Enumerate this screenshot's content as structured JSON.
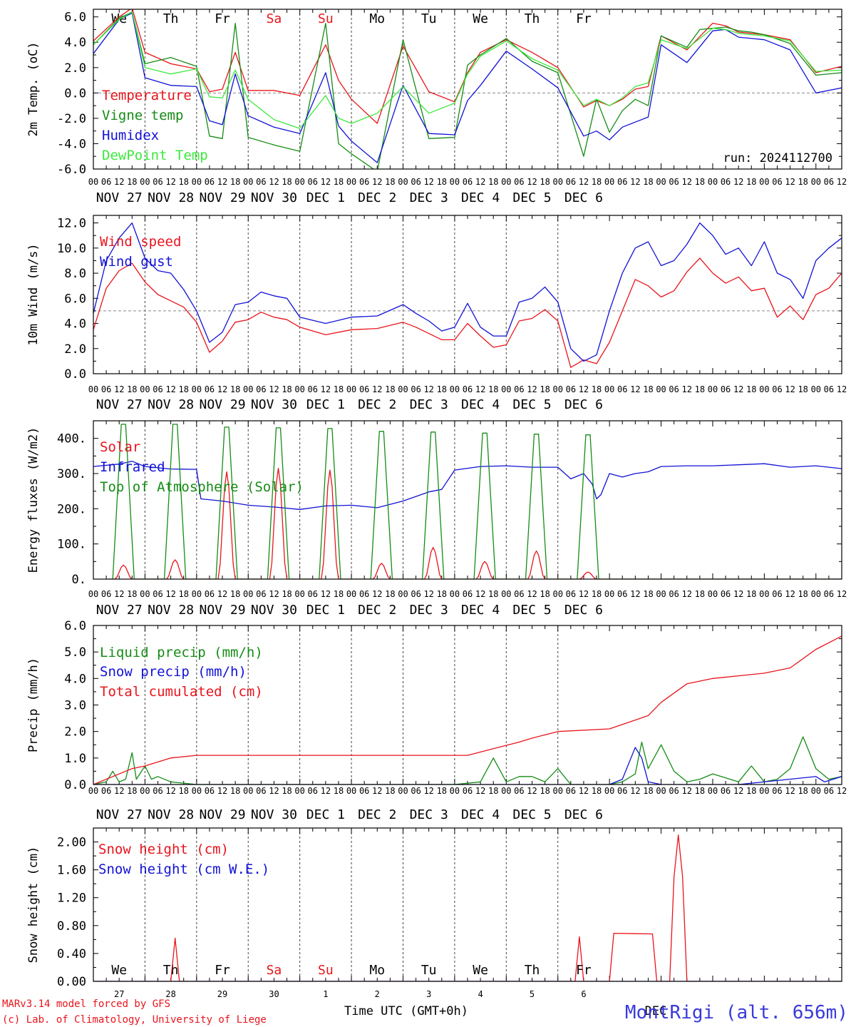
{
  "run_label": "run: 2024112700",
  "footer": {
    "model": "MARv3.14 model forced by GFS",
    "credit": "(c) Lab. of Climatology, University of Liege",
    "xlabel": "Time UTC (GMT+0h)",
    "station": "MontRigi (alt. 656m)"
  },
  "days": {
    "weekday": [
      "We",
      "Th",
      "Fr",
      "Sa",
      "Su",
      "Mo",
      "Tu",
      "We",
      "Th",
      "Fr"
    ],
    "weekend_flags": [
      false,
      false,
      false,
      true,
      true,
      false,
      false,
      false,
      false,
      false
    ],
    "date_labels": [
      "NOV 27",
      "NOV 28",
      "NOV 29",
      "NOV 30",
      "DEC  1",
      "DEC  2",
      "DEC  3",
      "DEC  4",
      "DEC  5",
      "DEC  6"
    ],
    "day_numbers": [
      "27",
      "28",
      "29",
      "30",
      "1",
      "2",
      "3",
      "4",
      "5",
      "6"
    ],
    "hour_ticks": [
      "00",
      "06",
      "12",
      "18"
    ],
    "bottom_month_label": "DEC"
  },
  "colors": {
    "red": "#e8141c",
    "green": "#158c15",
    "blue": "#1212d6",
    "lightgreen": "#3ce83c",
    "grey": "#888888",
    "station": "#3a3adc"
  },
  "chart_data": [
    {
      "type": "line",
      "ylabel": "2m Temp. (oC)",
      "ylim": [
        -6,
        6.6
      ],
      "yticks": [
        "6.0",
        "4.0",
        "2.0",
        "0.0",
        "-2.0",
        "-4.0",
        "-6.0"
      ],
      "ytick_values": [
        6,
        4,
        2,
        0,
        -2,
        -4,
        -6
      ],
      "hline": 0,
      "series": [
        {
          "name": "Temperature",
          "color": "red",
          "x": [
            0,
            12,
            18,
            24,
            36,
            48,
            54,
            60,
            66,
            72,
            84,
            96,
            108,
            114,
            120,
            132,
            144,
            156,
            168,
            174,
            180,
            192,
            204,
            216,
            228,
            234,
            240,
            246,
            252,
            258,
            264,
            276,
            288,
            294,
            300,
            306,
            312,
            324,
            336,
            348
          ],
          "y": [
            4.1,
            6.0,
            6.7,
            3.2,
            2.3,
            1.9,
            0.1,
            0.3,
            3.2,
            0.2,
            0.2,
            -0.2,
            3.8,
            1.0,
            -0.5,
            -2.4,
            3.7,
            0.1,
            -0.7,
            1.6,
            3.2,
            4.2,
            3.2,
            2.0,
            -1.1,
            -0.6,
            -1.0,
            -0.5,
            0.3,
            0.5,
            4.5,
            3.4,
            5.5,
            5.3,
            4.8,
            4.7,
            4.6,
            4.2,
            1.6,
            2.1
          ]
        },
        {
          "name": "Vigne temp",
          "color": "green",
          "x": [
            0,
            12,
            18,
            24,
            36,
            48,
            54,
            60,
            66,
            72,
            84,
            96,
            108,
            114,
            120,
            132,
            144,
            156,
            168,
            174,
            180,
            192,
            204,
            216,
            228,
            234,
            240,
            246,
            252,
            258,
            264,
            276,
            282,
            288,
            294,
            300,
            306,
            312,
            324,
            336,
            348
          ],
          "y": [
            3.8,
            5.9,
            6.4,
            2.3,
            2.8,
            2.1,
            -3.4,
            -3.6,
            5.5,
            -3.5,
            -4.1,
            -4.6,
            5.5,
            -4.0,
            -4.8,
            -6.2,
            4.2,
            -3.6,
            -3.5,
            2.2,
            3.0,
            4.3,
            2.5,
            1.6,
            -5.0,
            -0.5,
            -3.1,
            -1.4,
            -0.5,
            -1.0,
            4.5,
            3.6,
            5.0,
            5.1,
            5.2,
            4.9,
            4.8,
            4.6,
            3.9,
            1.4,
            1.6
          ]
        },
        {
          "name": "Humidex",
          "color": "blue",
          "x": [
            0,
            12,
            18,
            24,
            36,
            48,
            54,
            60,
            66,
            72,
            84,
            96,
            108,
            114,
            120,
            132,
            144,
            156,
            168,
            174,
            180,
            192,
            204,
            216,
            228,
            234,
            240,
            246,
            252,
            258,
            264,
            276,
            288,
            294,
            300,
            306,
            312,
            324,
            336,
            348
          ],
          "y": [
            3.1,
            5.8,
            6.3,
            1.2,
            0.6,
            0.5,
            -2.2,
            -2.5,
            1.5,
            -1.8,
            -2.7,
            -3.2,
            1.6,
            -2.6,
            -3.8,
            -5.5,
            0.6,
            -3.2,
            -3.3,
            -0.6,
            0.6,
            3.3,
            1.9,
            0.4,
            -3.4,
            -3.0,
            -3.7,
            -2.7,
            -2.3,
            -1.9,
            3.8,
            2.4,
            4.9,
            5.0,
            4.4,
            4.3,
            4.2,
            3.4,
            0.0,
            0.4
          ]
        },
        {
          "name": "DewPoint Temp",
          "color": "lightgreen",
          "x": [
            0,
            12,
            18,
            24,
            36,
            48,
            54,
            60,
            66,
            72,
            84,
            96,
            108,
            114,
            120,
            132,
            144,
            156,
            168,
            174,
            180,
            192,
            204,
            216,
            228,
            234,
            240,
            246,
            252,
            258,
            264,
            276,
            288,
            294,
            300,
            306,
            312,
            324,
            336,
            348
          ],
          "y": [
            3.8,
            5.8,
            6.4,
            2.0,
            1.5,
            1.9,
            -0.3,
            -0.4,
            1.8,
            -0.5,
            -2.1,
            -2.8,
            -0.2,
            -2.0,
            -2.4,
            -1.6,
            0.5,
            -1.6,
            -0.8,
            1.5,
            2.9,
            4.1,
            2.7,
            1.8,
            -1.0,
            -0.5,
            -1.0,
            -0.4,
            0.5,
            0.8,
            4.2,
            3.5,
            5.1,
            5.0,
            4.7,
            4.6,
            4.5,
            4.1,
            1.7,
            1.8
          ]
        }
      ]
    },
    {
      "type": "line",
      "ylabel": "10m Wind (m/s)",
      "ylim": [
        0,
        12.6
      ],
      "yticks": [
        "12.0",
        "10.0",
        "8.0",
        "6.0",
        "4.0",
        "2.0",
        "0.0"
      ],
      "ytick_values": [
        12,
        10,
        8,
        6,
        4,
        2,
        0
      ],
      "hline": 5,
      "series": [
        {
          "name": "Wind speed",
          "color": "red",
          "x": [
            0,
            6,
            12,
            18,
            24,
            30,
            36,
            42,
            48,
            54,
            60,
            66,
            72,
            78,
            84,
            90,
            96,
            108,
            120,
            132,
            144,
            150,
            156,
            162,
            168,
            174,
            180,
            186,
            192,
            198,
            204,
            210,
            216,
            222,
            228,
            234,
            240,
            246,
            252,
            258,
            264,
            270,
            276,
            282,
            288,
            294,
            300,
            306,
            312,
            318,
            324,
            330,
            336,
            342,
            348
          ],
          "y": [
            3.5,
            6.8,
            8.2,
            8.8,
            7.3,
            6.3,
            5.8,
            5.3,
            4.1,
            1.7,
            2.6,
            4.1,
            4.3,
            4.9,
            4.5,
            4.3,
            3.7,
            3.1,
            3.5,
            3.6,
            4.1,
            3.7,
            3.2,
            2.7,
            2.7,
            4.0,
            3.0,
            2.1,
            2.3,
            4.2,
            4.4,
            5.1,
            4.2,
            0.5,
            1.1,
            0.8,
            2.5,
            5.0,
            7.5,
            7.0,
            6.1,
            6.6,
            8.1,
            9.2,
            8.0,
            7.2,
            7.7,
            6.6,
            6.8,
            4.5,
            5.4,
            4.3,
            6.3,
            6.8,
            8.0
          ]
        },
        {
          "name": "Wind gust",
          "color": "blue",
          "x": [
            0,
            6,
            12,
            18,
            24,
            30,
            36,
            42,
            48,
            54,
            60,
            66,
            72,
            78,
            84,
            90,
            96,
            108,
            120,
            132,
            144,
            150,
            156,
            162,
            168,
            174,
            180,
            186,
            192,
            198,
            204,
            210,
            216,
            222,
            228,
            234,
            240,
            246,
            252,
            258,
            264,
            270,
            276,
            282,
            288,
            294,
            300,
            306,
            312,
            318,
            324,
            330,
            336,
            342,
            348
          ],
          "y": [
            4.8,
            9.0,
            10.8,
            12.0,
            9.2,
            8.2,
            8.0,
            6.7,
            5.0,
            2.5,
            3.3,
            5.5,
            5.7,
            6.5,
            6.2,
            6.0,
            4.5,
            4.0,
            4.5,
            4.6,
            5.5,
            4.8,
            4.2,
            3.4,
            3.7,
            5.6,
            3.7,
            3.0,
            3.0,
            5.7,
            6.0,
            6.9,
            5.7,
            2.0,
            1.0,
            1.5,
            5.0,
            8.0,
            10.0,
            10.5,
            8.6,
            9.0,
            10.3,
            12.0,
            11.0,
            9.5,
            10.0,
            8.6,
            10.5,
            8.0,
            7.5,
            6.0,
            9.0,
            10.0,
            10.8
          ]
        }
      ]
    },
    {
      "type": "line",
      "ylabel": "Energy fluxes (W/m2)",
      "ylim": [
        0,
        450
      ],
      "yticks": [
        "400.",
        "300.",
        "200.",
        "100.",
        "0."
      ],
      "ytick_values": [
        400,
        300,
        200,
        100,
        0
      ],
      "solar_day": [
        10,
        18
      ],
      "series": [
        {
          "name": "Solar",
          "color": "red",
          "peaks": [
            40,
            55,
            305,
            315,
            310,
            45,
            90,
            50,
            80,
            20
          ],
          "shape": "bell"
        },
        {
          "name": "Infrared",
          "color": "blue",
          "x": [
            0,
            12,
            18,
            24,
            36,
            48,
            50,
            60,
            72,
            84,
            96,
            108,
            120,
            132,
            144,
            156,
            162,
            168,
            174,
            180,
            192,
            204,
            216,
            222,
            228,
            232,
            234,
            236,
            240,
            246,
            252,
            258,
            264,
            276,
            288,
            300,
            312,
            324,
            336,
            348
          ],
          "y": [
            320,
            327,
            335,
            320,
            313,
            312,
            228,
            222,
            210,
            205,
            198,
            208,
            210,
            203,
            222,
            248,
            255,
            310,
            315,
            320,
            322,
            318,
            318,
            285,
            300,
            270,
            228,
            240,
            300,
            290,
            300,
            305,
            320,
            322,
            322,
            325,
            328,
            318,
            322,
            314
          ]
        },
        {
          "name": "Top of Atmosphere (Solar)",
          "color": "green",
          "peaks": [
            440,
            440,
            432,
            430,
            428,
            420,
            418,
            415,
            412,
            410
          ],
          "shape": "trapezoid"
        }
      ]
    },
    {
      "type": "line",
      "ylabel": "Precip (mm/h)",
      "ylim": [
        0,
        6.0
      ],
      "yticks": [
        "6.0",
        "5.0",
        "4.0",
        "3.0",
        "2.0",
        "1.0",
        "0.0"
      ],
      "ytick_values": [
        6,
        5,
        4,
        3,
        2,
        1,
        0
      ],
      "series": [
        {
          "name": "Liquid precip (mm/h)",
          "color": "green",
          "x": [
            0,
            6,
            9,
            12,
            15,
            18,
            20,
            24,
            27,
            30,
            36,
            48,
            96,
            168,
            180,
            186,
            192,
            198,
            204,
            210,
            216,
            222,
            228,
            240,
            246,
            252,
            255,
            258,
            264,
            270,
            276,
            282,
            288,
            300,
            306,
            312,
            318,
            324,
            330,
            336,
            342,
            348
          ],
          "y": [
            0,
            0.1,
            0.5,
            0.1,
            0.2,
            1.2,
            0.2,
            0.7,
            0.2,
            0.3,
            0.1,
            0,
            0,
            0,
            0.1,
            1.0,
            0.1,
            0.3,
            0.3,
            0.1,
            0.6,
            0,
            0,
            0,
            0.1,
            0.4,
            1.6,
            0.6,
            1.5,
            0.5,
            0.1,
            0.2,
            0.4,
            0.1,
            0.7,
            0.1,
            0.2,
            0.6,
            1.8,
            0.6,
            0.2,
            0.3
          ]
        },
        {
          "name": "Snow precip (mm/h)",
          "color": "blue",
          "x": [
            0,
            200,
            240,
            246,
            252,
            255,
            258,
            264,
            300,
            336,
            340,
            344,
            348
          ],
          "y": [
            0,
            0,
            0,
            0.2,
            1.4,
            1.0,
            0.1,
            0,
            0,
            0.3,
            0.1,
            0.2,
            0.3
          ]
        },
        {
          "name": "Total cumulated (cm)",
          "color": "red",
          "x": [
            0,
            18,
            24,
            36,
            48,
            60,
            96,
            144,
            174,
            186,
            198,
            204,
            216,
            240,
            258,
            264,
            276,
            288,
            300,
            312,
            324,
            336,
            348
          ],
          "y": [
            0,
            0.6,
            0.7,
            1.0,
            1.1,
            1.1,
            1.1,
            1.1,
            1.1,
            1.35,
            1.6,
            1.75,
            2.0,
            2.1,
            2.6,
            3.1,
            3.8,
            4.0,
            4.1,
            4.2,
            4.4,
            5.1,
            5.6
          ]
        }
      ]
    },
    {
      "type": "line",
      "ylabel": "Snow height (cm)",
      "ylim": [
        0,
        2.2
      ],
      "yticks": [
        "2.00",
        "1.60",
        "1.20",
        "0.80",
        "0.40",
        "0.00"
      ],
      "ytick_values": [
        2.0,
        1.6,
        1.2,
        0.8,
        0.4,
        0.0
      ],
      "series": [
        {
          "name": "Snow height (cm)",
          "color": "red",
          "x": [
            0,
            36,
            38,
            40,
            224,
            226,
            228,
            240,
            242,
            260,
            262,
            268,
            270,
            272,
            274,
            276,
            278,
            348
          ],
          "y": [
            0,
            0,
            0.62,
            0,
            0,
            0.64,
            0,
            0,
            0.69,
            0.68,
            0,
            0,
            1.5,
            2.1,
            1.5,
            0,
            0,
            0
          ]
        },
        {
          "name": "Snow height (cm W.E.)",
          "color": "blue",
          "x": [
            0,
            348
          ],
          "y": [
            0,
            0
          ]
        }
      ]
    }
  ]
}
